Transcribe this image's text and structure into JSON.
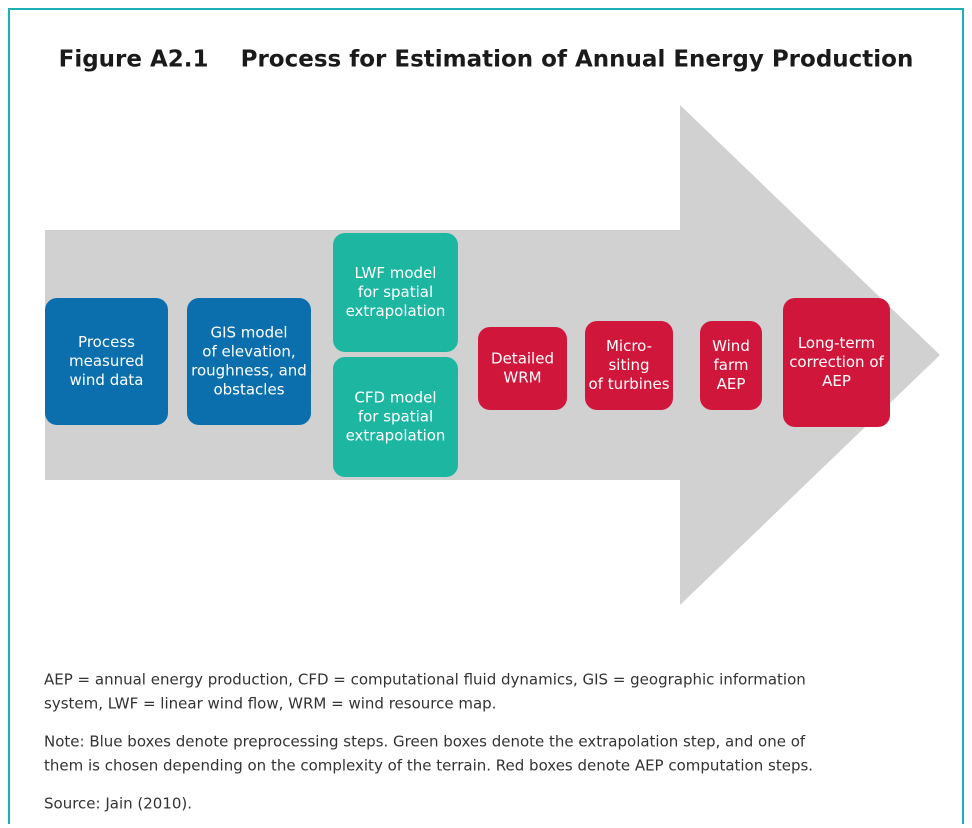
{
  "title": "Figure A2.1    Process for Estimation of Annual Energy Production",
  "nodes": [
    {
      "group": "preprocessing",
      "lines": [
        "Process",
        "measured",
        "wind data"
      ]
    },
    {
      "group": "preprocessing",
      "lines": [
        "GIS model",
        "of elevation,",
        "roughness, and",
        "obstacles"
      ]
    },
    {
      "group": "extrapolation",
      "lines": [
        "LWF model",
        "for spatial",
        "extrapolation"
      ]
    },
    {
      "group": "extrapolation",
      "lines": [
        "CFD model",
        "for spatial",
        "extrapolation"
      ]
    },
    {
      "group": "computation",
      "lines": [
        "Detailed",
        "WRM"
      ]
    },
    {
      "group": "computation",
      "lines": [
        "Micro-",
        "siting",
        "of turbines"
      ]
    },
    {
      "group": "computation",
      "lines": [
        "Wind",
        "farm",
        "AEP"
      ]
    },
    {
      "group": "computation",
      "lines": [
        "Long-term",
        "correction of",
        "AEP"
      ]
    }
  ],
  "notes": [
    [
      "AEP = annual energy production, CFD = computational fluid dynamics, GIS = geographic information",
      "system, LWF = linear wind flow, WRM = wind resource map."
    ],
    [
      "Note: Blue boxes denote preprocessing steps. Green boxes denote the extrapolation step, and one of",
      "them is chosen depending on the complexity of the terrain. Red boxes denote AEP computation steps."
    ],
    [
      "Source: Jain (2010)."
    ]
  ]
}
